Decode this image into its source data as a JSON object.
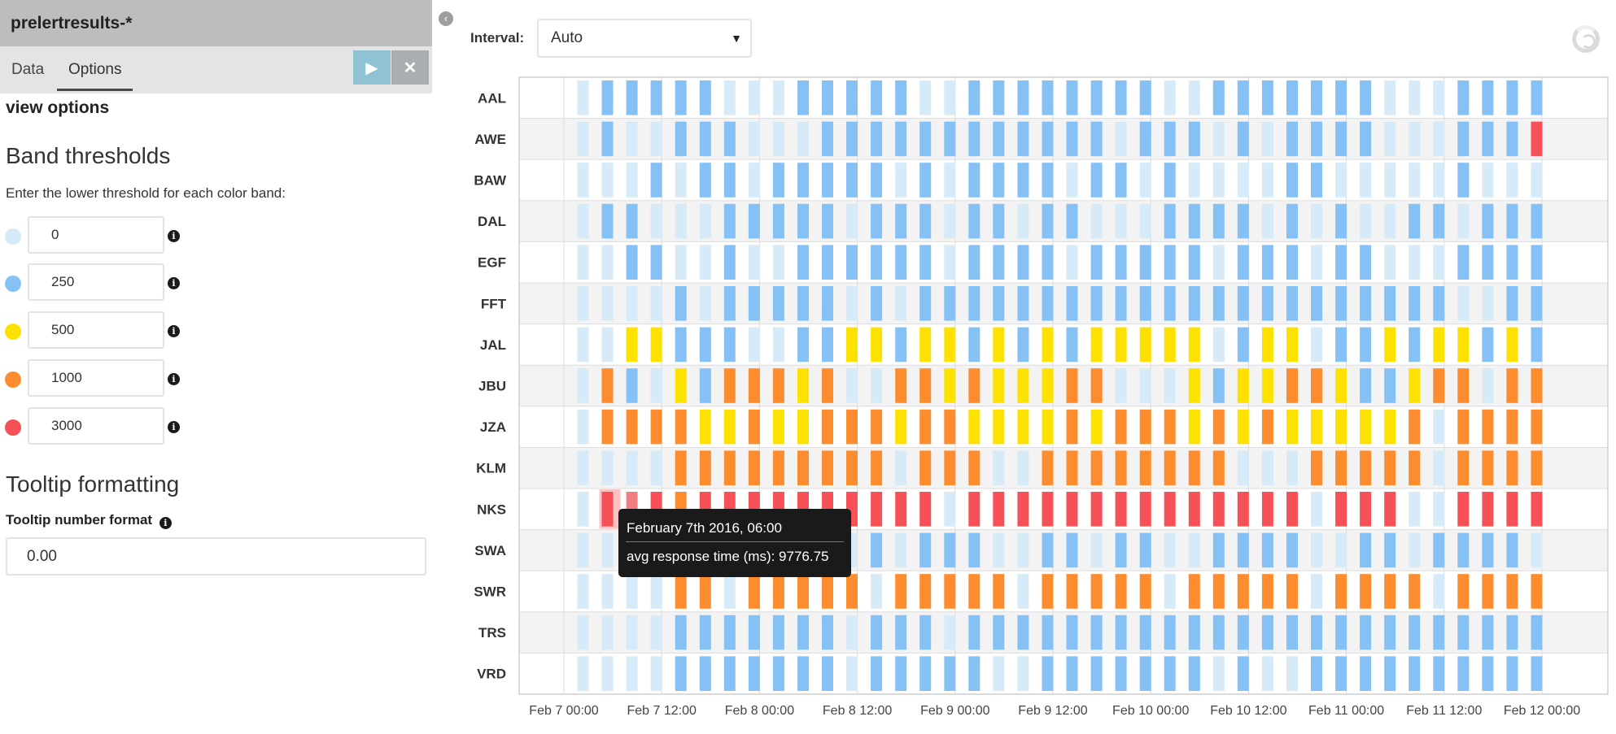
{
  "panel": {
    "title": "prelertresults-*",
    "tabs": [
      {
        "label": "Data"
      },
      {
        "label": "Options"
      }
    ],
    "apply_icon": "play-icon",
    "cancel_icon": "close-icon",
    "view_options_label": "view options",
    "band_thresholds": {
      "title": "Band thresholds",
      "hint": "Enter the lower threshold for each color band:",
      "bands": [
        {
          "value": "0",
          "color": "#d6eaf8"
        },
        {
          "value": "250",
          "color": "#85c1f5"
        },
        {
          "value": "500",
          "color": "#fde200"
        },
        {
          "value": "1000",
          "color": "#fd8c2e"
        },
        {
          "value": "3000",
          "color": "#f55156"
        }
      ]
    },
    "tooltip_formatting": {
      "title": "Tooltip formatting",
      "number_format_label": "Tooltip number format",
      "number_format_value": "0.00"
    }
  },
  "visualization": {
    "collapse_icon": "chevron-left-icon",
    "interval": {
      "label": "Interval:",
      "value": "Auto"
    },
    "loading_icon": "spinner-icon"
  },
  "chart_data": {
    "type": "heatmap",
    "title": "",
    "x_ticks": [
      "Feb 7 00:00",
      "Feb 7 12:00",
      "Feb 8 00:00",
      "Feb 8 12:00",
      "Feb 9 00:00",
      "Feb 9 12:00",
      "Feb 10 00:00",
      "Feb 10 12:00",
      "Feb 11 00:00",
      "Feb 11 12:00",
      "Feb 12 00:00"
    ],
    "rows": [
      "AAL",
      "AWE",
      "BAW",
      "DAL",
      "EGF",
      "FFT",
      "JAL",
      "JBU",
      "JZA",
      "KLM",
      "NKS",
      "SWA",
      "SWR",
      "TRS",
      "VRD"
    ],
    "slot_hours": 3,
    "slot_count": 40,
    "band_legend": {
      "0": "#d6eaf8",
      "1": "#85c1f5",
      "2": "#fde200",
      "3": "#fd8c2e",
      "4": "#f55156"
    },
    "band_codes": [
      "0111110001111100111111110011111110001111",
      "0100111000111111111111011101011110001114",
      "0001011011111010111101101000011000001000",
      "0110001111101110110110001111010100110111",
      "0011001001111110111101111101110110001111",
      "0000101111101011111111111111111111110011",
      "0022111001122122121212222201220112122121",
      "0310213332300332322233000212233211233033",
      "0333322322333233222232333232322222303333",
      "0000333333333033300333333330003333303333",
      "0444344444444440444444444444440444004444",
      "0010010001101011100110110011110011011110",
      "0000330333330333330333330333330333303333",
      "0000111111101110111111111111111111111111",
      "0000111111101111100111111101001111111111"
    ],
    "tooltip": {
      "title": "February 7th 2016, 06:00",
      "metric": "avg response time (ms): 9776.75"
    }
  }
}
